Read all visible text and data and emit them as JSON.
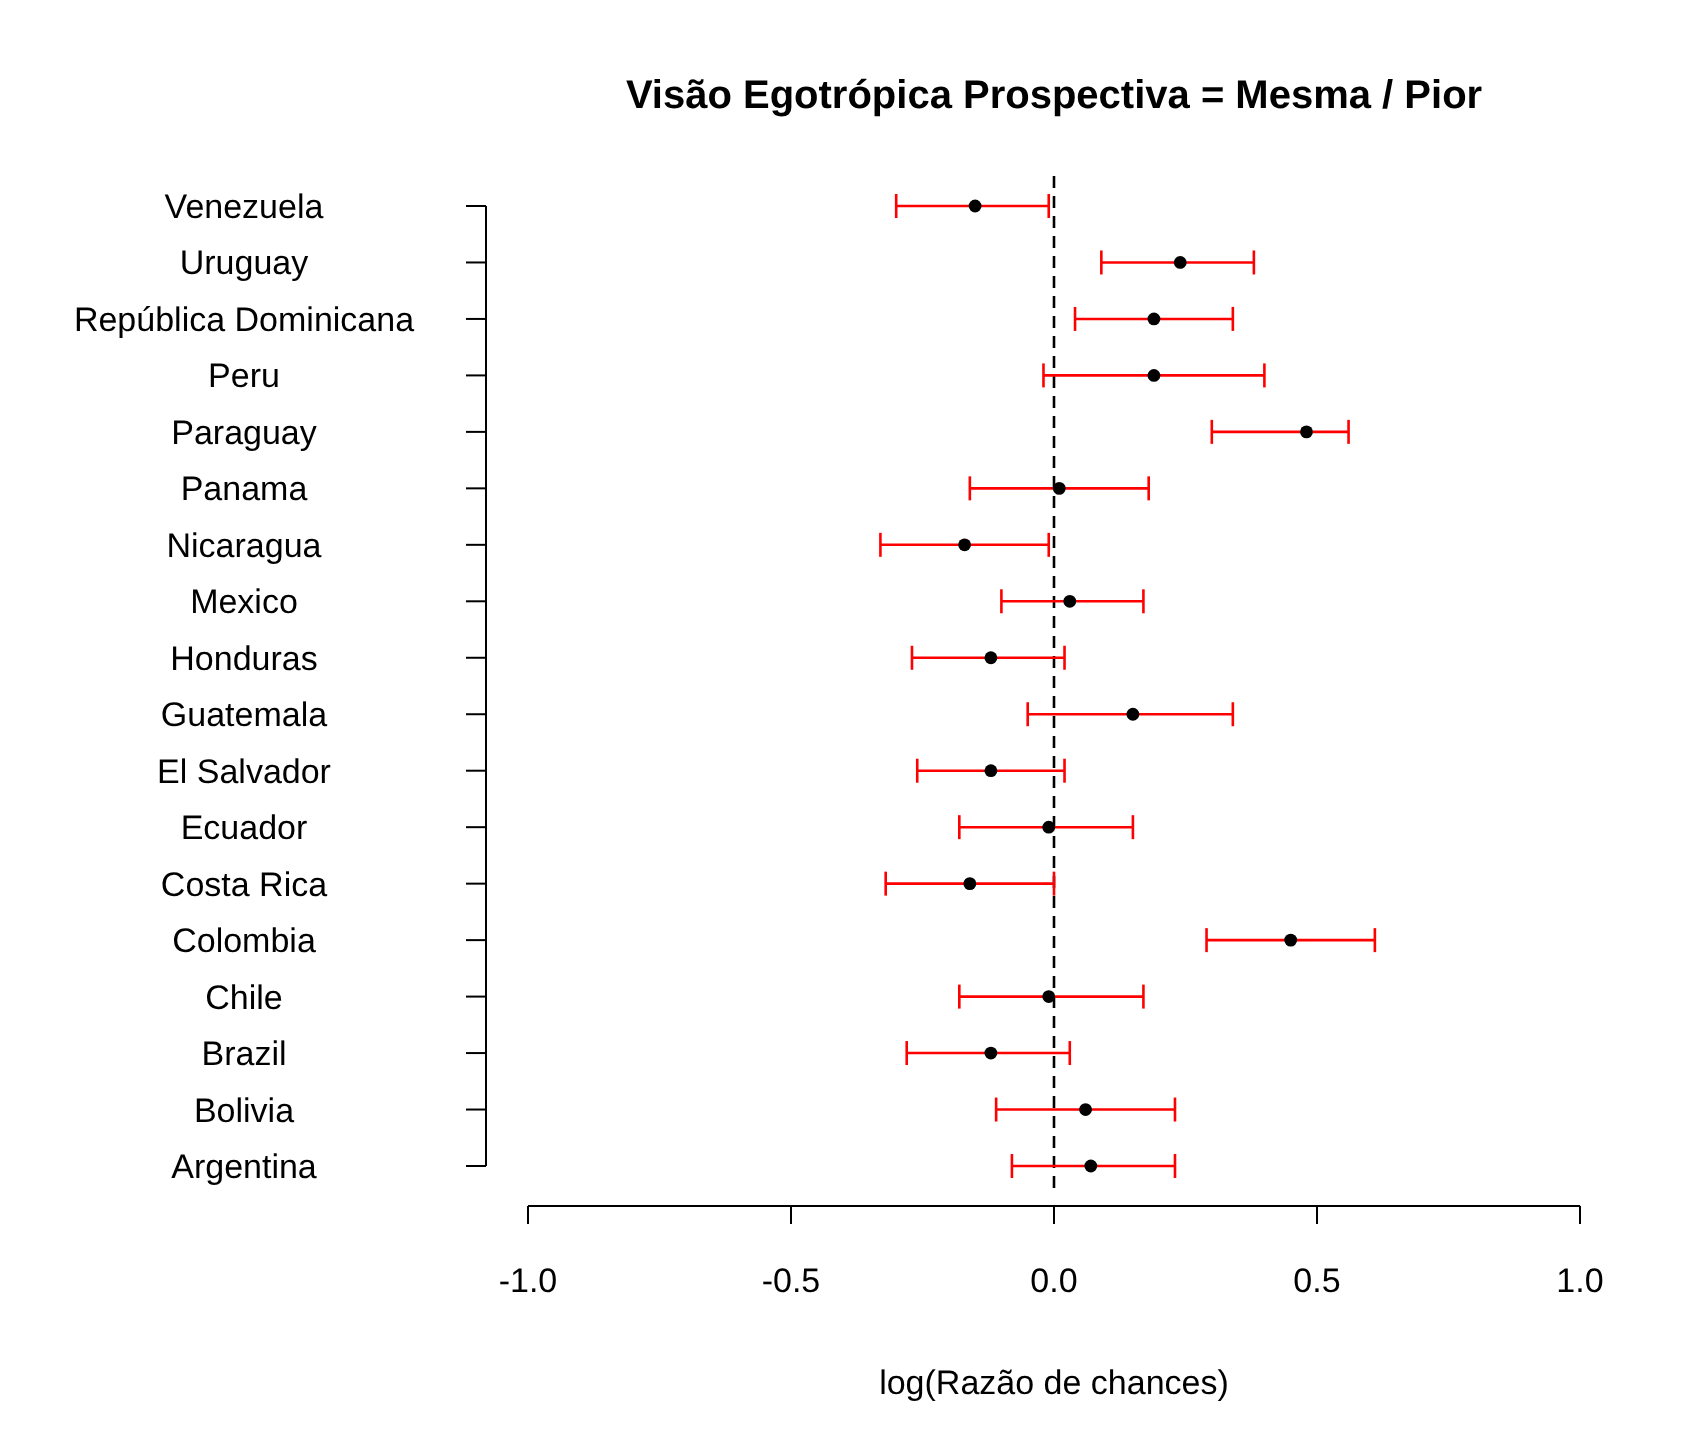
{
  "chart_data": {
    "type": "scatter",
    "orientation": "horizontal",
    "title": "Visão Egotrópica Prospectiva = Mesma / Pior",
    "xlabel": "log(Razão de chances)",
    "categories": [
      "Venezuela",
      "Uruguay",
      "República Dominicana",
      "Peru",
      "Paraguay",
      "Panama",
      "Nicaragua",
      "Mexico",
      "Honduras",
      "Guatemala",
      "El Salvador",
      "Ecuador",
      "Costa Rica",
      "Colombia",
      "Chile",
      "Brazil",
      "Bolivia",
      "Argentina"
    ],
    "values": [
      -0.15,
      0.24,
      0.19,
      0.19,
      0.48,
      0.01,
      -0.17,
      0.03,
      -0.12,
      0.15,
      -0.12,
      -0.01,
      -0.16,
      0.45,
      -0.01,
      -0.12,
      0.06,
      0.07
    ],
    "errors": [
      [
        -0.3,
        -0.01
      ],
      [
        0.09,
        0.38
      ],
      [
        0.04,
        0.34
      ],
      [
        -0.02,
        0.4
      ],
      [
        0.3,
        0.56
      ],
      [
        -0.16,
        0.18
      ],
      [
        -0.33,
        -0.01
      ],
      [
        -0.1,
        0.17
      ],
      [
        -0.27,
        0.02
      ],
      [
        -0.05,
        0.34
      ],
      [
        -0.26,
        0.02
      ],
      [
        -0.18,
        0.15
      ],
      [
        -0.32,
        0
      ],
      [
        0.29,
        0.61
      ],
      [
        -0.18,
        0.17
      ],
      [
        -0.28,
        0.03
      ],
      [
        -0.11,
        0.23
      ],
      [
        -0.08,
        0.23
      ]
    ],
    "color": "#000000",
    "marker": "circle",
    "xlim": [
      -1,
      1
    ],
    "xticks": [
      {
        "value": -1,
        "label": "-1.0"
      },
      {
        "value": -0.5,
        "label": "-0.5"
      },
      {
        "value": 0,
        "label": "0.0"
      },
      {
        "value": 0.5,
        "label": "0.5"
      },
      {
        "value": 1,
        "label": "1.0"
      }
    ],
    "ref_lines": [
      {
        "axis": "x",
        "value": 0,
        "line_style": "dashed",
        "color": "#000000"
      }
    ],
    "grid": false
  }
}
